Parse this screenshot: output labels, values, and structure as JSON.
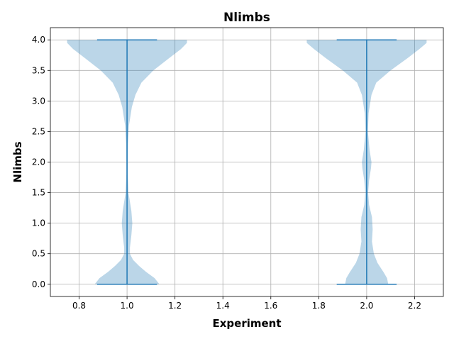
{
  "chart_data": {
    "type": "violin",
    "title": "Nlimbs",
    "xlabel": "Experiment",
    "ylabel": "Nlimbs",
    "xlim": [
      0.68,
      2.32
    ],
    "ylim": [
      -0.2,
      4.2
    ],
    "xticks": [
      0.8,
      1.0,
      1.2,
      1.4,
      1.6,
      1.8,
      2.0,
      2.2
    ],
    "xtick_labels": [
      "0.8",
      "1.0",
      "1.2",
      "1.4",
      "1.6",
      "1.8",
      "2.0",
      "2.2"
    ],
    "yticks": [
      0.0,
      0.5,
      1.0,
      1.5,
      2.0,
      2.5,
      3.0,
      3.5,
      4.0
    ],
    "ytick_labels": [
      "0.0",
      "0.5",
      "1.0",
      "1.5",
      "2.0",
      "2.5",
      "3.0",
      "3.5",
      "4.0"
    ],
    "grid": true,
    "colors": {
      "body": "#1f77b4",
      "body_opacity": 0.3,
      "lines": "#1f77b4",
      "grid": "#b0b0b0"
    },
    "violins": [
      {
        "position": 1.0,
        "min": 0.0,
        "max": 4.0,
        "cap_halfwidth": 0.125,
        "profile": [
          [
            0.0,
            0.135
          ],
          [
            0.1,
            0.115
          ],
          [
            0.2,
            0.08
          ],
          [
            0.3,
            0.05
          ],
          [
            0.4,
            0.025
          ],
          [
            0.5,
            0.012
          ],
          [
            0.6,
            0.012
          ],
          [
            0.8,
            0.018
          ],
          [
            1.0,
            0.022
          ],
          [
            1.2,
            0.018
          ],
          [
            1.5,
            0.006
          ],
          [
            1.8,
            0.003
          ],
          [
            2.0,
            0.003
          ],
          [
            2.3,
            0.004
          ],
          [
            2.6,
            0.008
          ],
          [
            2.9,
            0.02
          ],
          [
            3.1,
            0.035
          ],
          [
            3.3,
            0.06
          ],
          [
            3.5,
            0.11
          ],
          [
            3.7,
            0.175
          ],
          [
            3.85,
            0.225
          ],
          [
            3.95,
            0.25
          ],
          [
            4.0,
            0.25
          ]
        ]
      },
      {
        "position": 2.0,
        "min": 0.0,
        "max": 4.0,
        "cap_halfwidth": 0.125,
        "profile": [
          [
            0.0,
            0.09
          ],
          [
            0.1,
            0.085
          ],
          [
            0.2,
            0.07
          ],
          [
            0.35,
            0.045
          ],
          [
            0.5,
            0.03
          ],
          [
            0.7,
            0.022
          ],
          [
            0.9,
            0.025
          ],
          [
            1.1,
            0.022
          ],
          [
            1.3,
            0.01
          ],
          [
            1.5,
            0.006
          ],
          [
            1.7,
            0.01
          ],
          [
            1.9,
            0.018
          ],
          [
            2.0,
            0.02
          ],
          [
            2.2,
            0.012
          ],
          [
            2.5,
            0.005
          ],
          [
            2.8,
            0.008
          ],
          [
            3.1,
            0.02
          ],
          [
            3.3,
            0.04
          ],
          [
            3.5,
            0.1
          ],
          [
            3.7,
            0.17
          ],
          [
            3.85,
            0.22
          ],
          [
            3.95,
            0.25
          ],
          [
            4.0,
            0.25
          ]
        ]
      }
    ]
  }
}
